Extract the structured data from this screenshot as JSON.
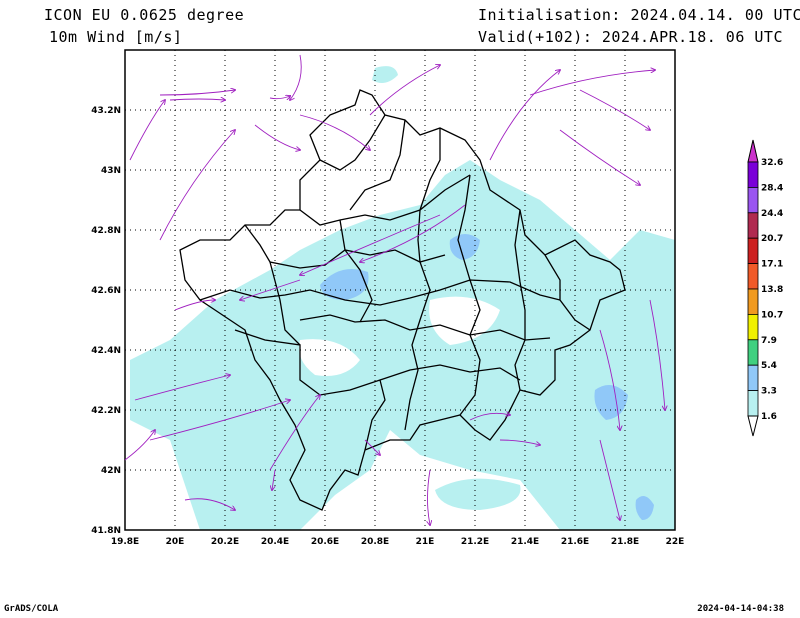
{
  "header": {
    "model": "ICON EU 0.0625 degree",
    "variable": "10m Wind [m/s]",
    "init": "Initialisation: 2024.04.14. 00 UTC",
    "valid": "Valid(+102): 2024.APR.18. 06 UTC"
  },
  "map": {
    "lon_ticks": [
      "19.8E",
      "20E",
      "20.2E",
      "20.4E",
      "20.6E",
      "20.8E",
      "21E",
      "21.2E",
      "21.4E",
      "21.6E",
      "21.8E",
      "22E"
    ],
    "lat_ticks": [
      "43.2N",
      "43N",
      "42.8N",
      "42.6N",
      "42.4N",
      "42.2N",
      "42N",
      "41.8N"
    ]
  },
  "colorbar": {
    "labels": [
      "32.6",
      "28.4",
      "24.4",
      "20.7",
      "17.1",
      "13.8",
      "10.7",
      "7.9",
      "5.4",
      "3.3",
      "1.6"
    ],
    "colors": [
      "#7a00d8",
      "#9a55f0",
      "#b02a50",
      "#cc2020",
      "#f05a28",
      "#f09a20",
      "#f0f000",
      "#40d080",
      "#90c8f8",
      "#b8f0f0"
    ],
    "arrow_top_color": "#cc33cc"
  },
  "footer": {
    "left": "GrADS/COLA",
    "right": "2024-04-14-04:38"
  }
}
